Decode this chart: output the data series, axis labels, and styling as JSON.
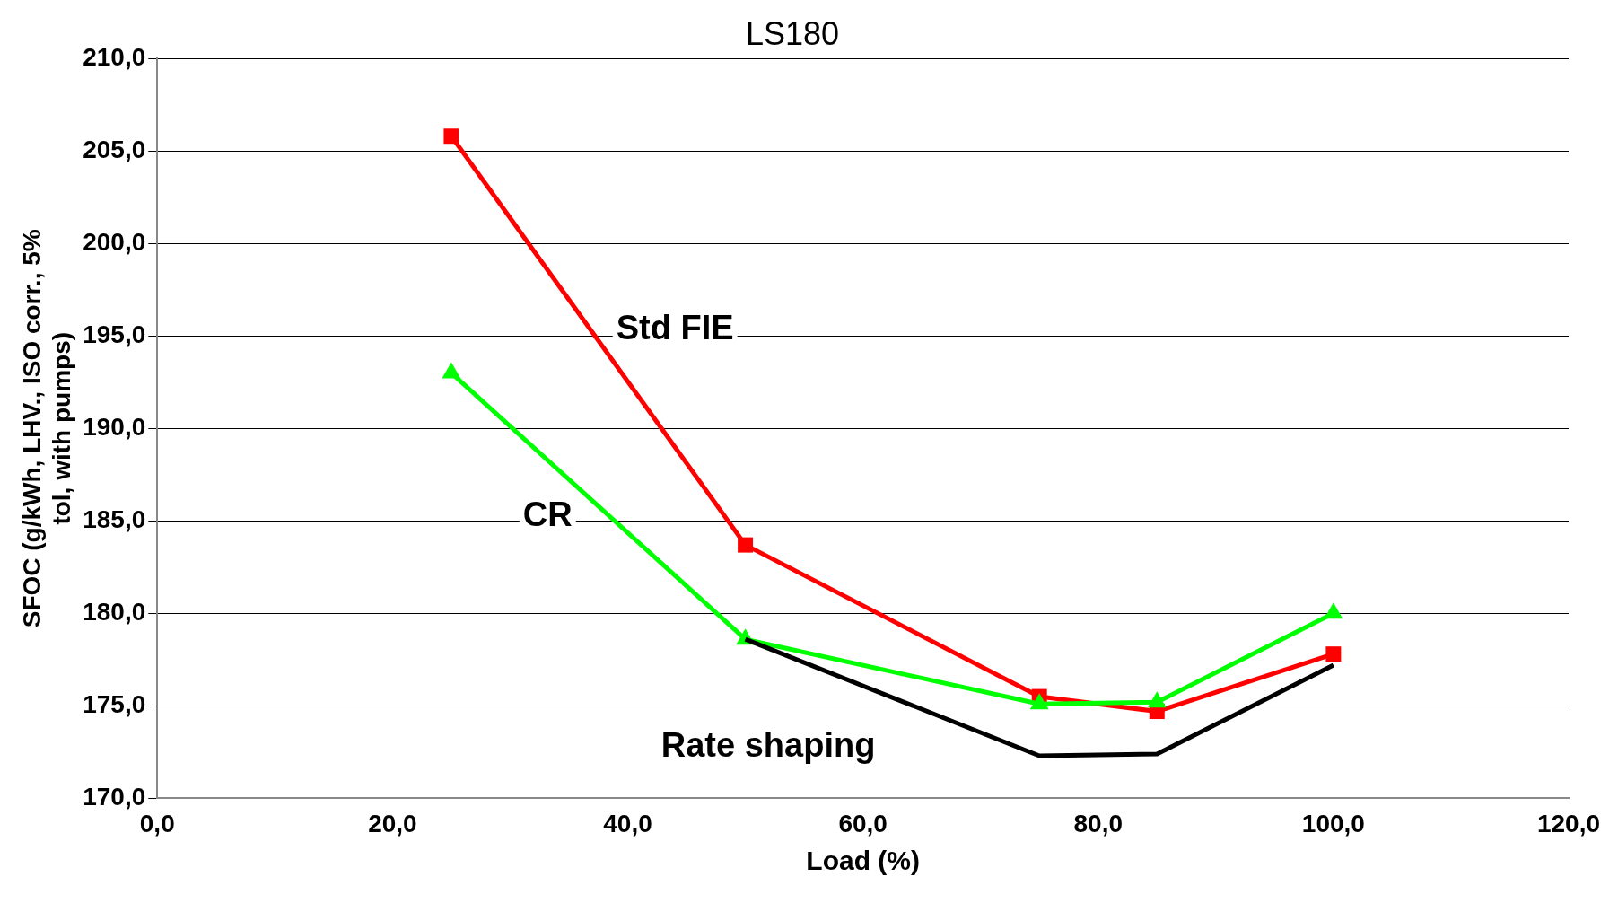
{
  "chart_data": {
    "type": "line",
    "title": "LS180",
    "xlabel": "Load (%)",
    "ylabel": "SFOC (g/kWh, LHV., ISO corr., 5% tol, with pumps)",
    "xlim": [
      0,
      120
    ],
    "xticks": [
      {
        "value": 0,
        "label": "0,0"
      },
      {
        "value": 20,
        "label": "20,0"
      },
      {
        "value": 40,
        "label": "40,0"
      },
      {
        "value": 60,
        "label": "60,0"
      },
      {
        "value": 80,
        "label": "80,0"
      },
      {
        "value": 100,
        "label": "100,0"
      },
      {
        "value": 120,
        "label": "120,0"
      }
    ],
    "ylim": [
      170,
      210
    ],
    "yticks": [
      {
        "value": 170,
        "label": "170,0"
      },
      {
        "value": 175,
        "label": "175,0"
      },
      {
        "value": 180,
        "label": "180,0"
      },
      {
        "value": 185,
        "label": "185,0"
      },
      {
        "value": 190,
        "label": "190,0"
      },
      {
        "value": 195,
        "label": "195,0"
      },
      {
        "value": 200,
        "label": "200,0"
      },
      {
        "value": 205,
        "label": "205,0"
      },
      {
        "value": 210,
        "label": "210,0"
      }
    ],
    "grid": "y",
    "legend": false,
    "series": [
      {
        "name": "Std FIE",
        "color": "#ff0000",
        "marker": "square",
        "x": [
          25,
          50,
          75,
          85,
          100
        ],
        "values": [
          205.8,
          183.7,
          175.5,
          174.7,
          177.8
        ]
      },
      {
        "name": "CR",
        "color": "#00ff00",
        "marker": "triangle",
        "x": [
          25,
          50,
          75,
          85,
          100
        ],
        "values": [
          193.0,
          178.6,
          175.1,
          175.2,
          180.0
        ]
      },
      {
        "name": "Rate shaping",
        "color": "#000000",
        "marker": "none",
        "x": [
          50,
          75,
          85,
          100
        ],
        "values": [
          178.6,
          172.3,
          172.4,
          177.2
        ]
      }
    ]
  }
}
